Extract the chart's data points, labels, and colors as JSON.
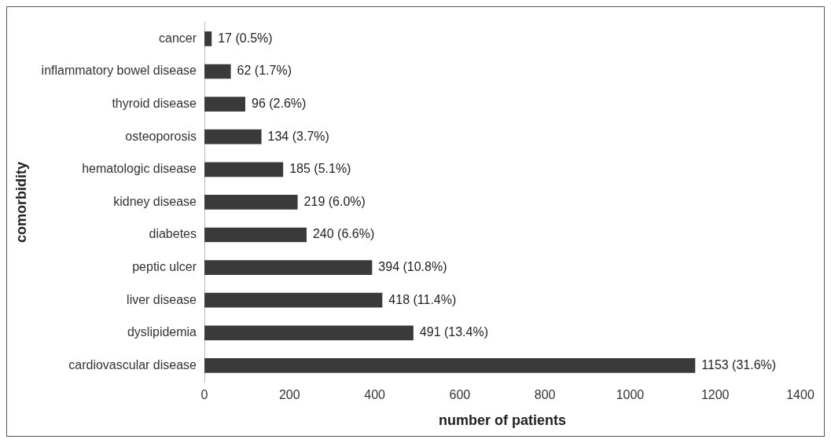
{
  "chart_data": {
    "type": "bar",
    "orientation": "horizontal",
    "xlabel": "number of patients",
    "ylabel": "comorbidity",
    "categories": [
      "cancer",
      "inflammatory bowel disease",
      "thyroid disease",
      "osteoporosis",
      "hematologic disease",
      "kidney disease",
      "diabetes",
      "peptic ulcer",
      "liver disease",
      "dyslipidemia",
      "cardiovascular disease"
    ],
    "values": [
      17,
      62,
      96,
      134,
      185,
      219,
      240,
      394,
      418,
      491,
      1153
    ],
    "value_labels": [
      "17 (0.5%)",
      "62 (1.7%)",
      "96 (2.6%)",
      "134 (3.7%)",
      "185 (5.1%)",
      "219 (6.0%)",
      "240 (6.6%)",
      "394 (10.8%)",
      "418 (11.4%)",
      "491 (13.4%)",
      "1153 (31.6%)"
    ],
    "color": "#3a3a3a",
    "xlim": [
      0,
      1400
    ],
    "xticks": [
      0,
      200,
      400,
      600,
      800,
      1000,
      1200,
      1400
    ],
    "grid": false,
    "legend": false
  }
}
